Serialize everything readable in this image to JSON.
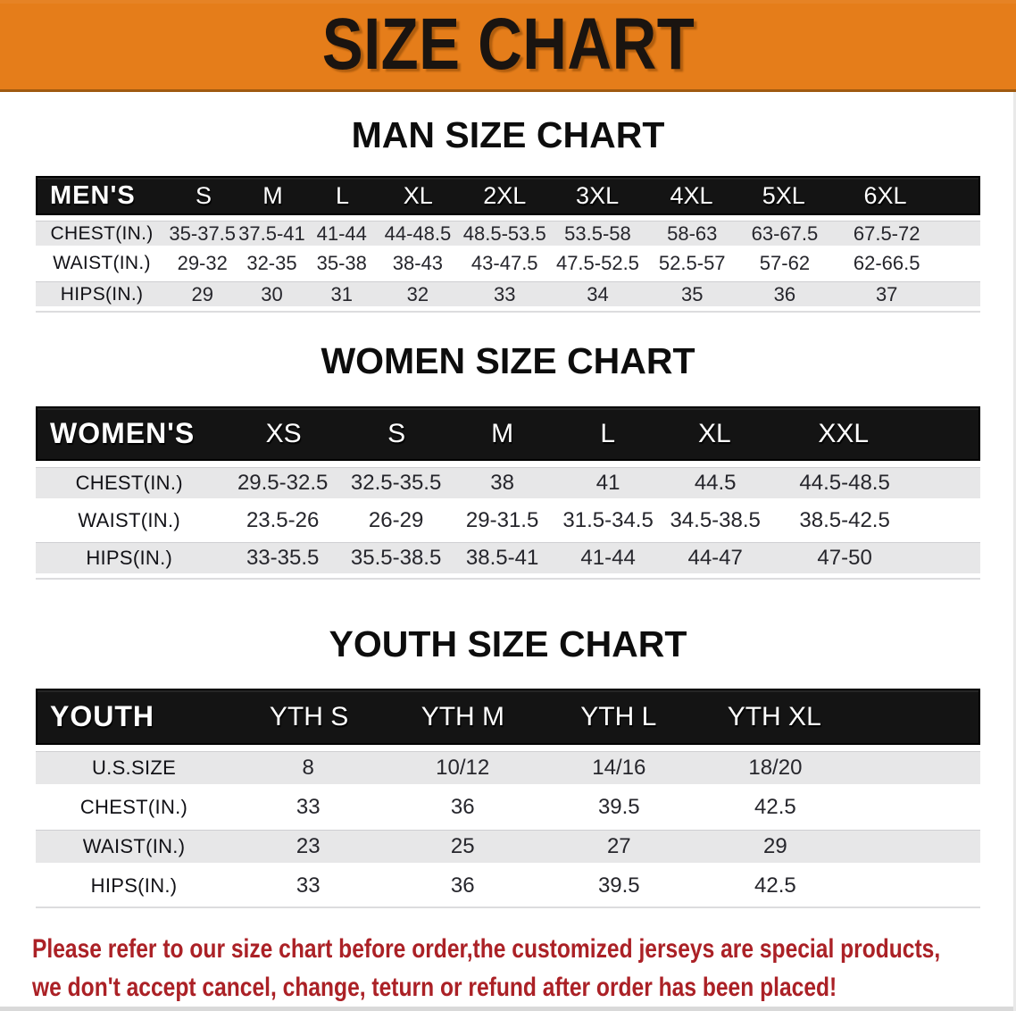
{
  "banner": {
    "title": "SIZE CHART"
  },
  "colors": {
    "banner_orange": "#E57D1A",
    "table_header_black": "#141414",
    "shaded_row_gray": "#E7E7E8",
    "disclaimer_red": "#AB2126"
  },
  "chart_data": [
    {
      "type": "table",
      "title": "MAN SIZE CHART",
      "header_label": "MEN'S",
      "columns": [
        "S",
        "M",
        "L",
        "XL",
        "2XL",
        "3XL",
        "4XL",
        "5XL",
        "6XL"
      ],
      "rows": [
        {
          "label": "CHEST(IN.)",
          "values": [
            "35-37.5",
            "37.5-41",
            "41-44",
            "44-48.5",
            "48.5-53.5",
            "53.5-58",
            "58-63",
            "63-67.5",
            "67.5-72"
          ]
        },
        {
          "label": "WAIST(IN.)",
          "values": [
            "29-32",
            "32-35",
            "35-38",
            "38-43",
            "43-47.5",
            "47.5-52.5",
            "52.5-57",
            "57-62",
            "62-66.5"
          ]
        },
        {
          "label": "HIPS(IN.)",
          "values": [
            "29",
            "30",
            "31",
            "32",
            "33",
            "34",
            "35",
            "36",
            "37"
          ]
        }
      ]
    },
    {
      "type": "table",
      "title": "WOMEN SIZE CHART",
      "header_label": "WOMEN'S",
      "columns": [
        "XS",
        "S",
        "M",
        "L",
        "XL",
        "XXL"
      ],
      "rows": [
        {
          "label": "CHEST(IN.)",
          "values": [
            "29.5-32.5",
            "32.5-35.5",
            "38",
            "41",
            "44.5",
            "44.5-48.5"
          ]
        },
        {
          "label": "WAIST(IN.)",
          "values": [
            "23.5-26",
            "26-29",
            "29-31.5",
            "31.5-34.5",
            "34.5-38.5",
            "38.5-42.5"
          ]
        },
        {
          "label": "HIPS(IN.)",
          "values": [
            "33-35.5",
            "35.5-38.5",
            "38.5-41",
            "41-44",
            "44-47",
            "47-50"
          ]
        }
      ]
    },
    {
      "type": "table",
      "title": "YOUTH SIZE CHART",
      "header_label": "YOUTH",
      "columns": [
        "YTH S",
        "YTH M",
        "YTH L",
        "YTH XL"
      ],
      "rows": [
        {
          "label": "U.S.SIZE",
          "values": [
            "8",
            "10/12",
            "14/16",
            "18/20"
          ]
        },
        {
          "label": "CHEST(IN.)",
          "values": [
            "33",
            "36",
            "39.5",
            "42.5"
          ]
        },
        {
          "label": "WAIST(IN.)",
          "values": [
            "23",
            "25",
            "27",
            "29"
          ]
        },
        {
          "label": "HIPS(IN.)",
          "values": [
            "33",
            "36",
            "39.5",
            "42.5"
          ]
        }
      ]
    }
  ],
  "footer": {
    "line1": "Please refer to our size chart before order,the customized jerseys are special products,",
    "line2": "we don't accept cancel, change, teturn or refund after order has been placed!"
  }
}
